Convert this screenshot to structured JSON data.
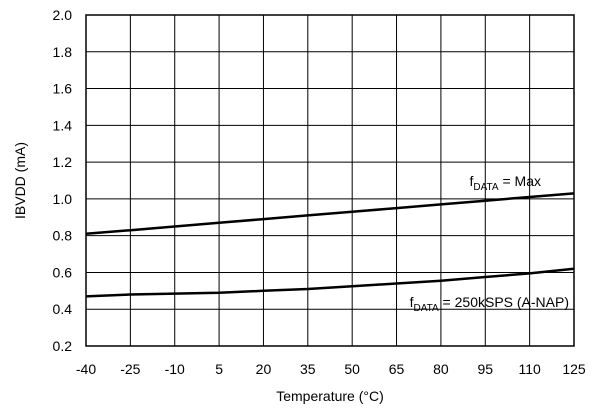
{
  "chart_data": {
    "type": "line",
    "title": "",
    "xlabel": "Temperature (°C)",
    "ylabel": "IBVDD (mA)",
    "x": [
      -40,
      -25,
      -10,
      5,
      20,
      35,
      50,
      65,
      80,
      95,
      110,
      125
    ],
    "x_tick_labels": [
      "-40",
      "-25",
      "-10",
      "5",
      "20",
      "35",
      "50",
      "65",
      "80",
      "95",
      "110",
      "125"
    ],
    "y_ticks": [
      0.2,
      0.4,
      0.6,
      0.8,
      1.0,
      1.2,
      1.4,
      1.6,
      1.8,
      2.0
    ],
    "y_tick_labels": [
      "0.2",
      "0.4",
      "0.6",
      "0.8",
      "1.0",
      "1.2",
      "1.4",
      "1.6",
      "1.8",
      "2.0"
    ],
    "xlim": [
      -40,
      125
    ],
    "ylim": [
      0.2,
      2.0
    ],
    "grid": true,
    "legend": "none",
    "line_color": "#000000",
    "series": [
      {
        "values": [
          0.81,
          0.83,
          0.85,
          0.87,
          0.89,
          0.91,
          0.93,
          0.95,
          0.97,
          0.99,
          1.01,
          1.03
        ]
      },
      {
        "values": [
          0.47,
          0.48,
          0.485,
          0.49,
          0.5,
          0.51,
          0.525,
          0.54,
          0.555,
          0.575,
          0.595,
          0.62
        ]
      }
    ],
    "annotations": [
      {
        "main": "f",
        "sub": "DATA",
        "rest": " = Max",
        "series_index": 0
      },
      {
        "main": "f",
        "sub": "DATA",
        "rest": " = 250kSPS (A-NAP)",
        "series_index": 1
      }
    ]
  }
}
